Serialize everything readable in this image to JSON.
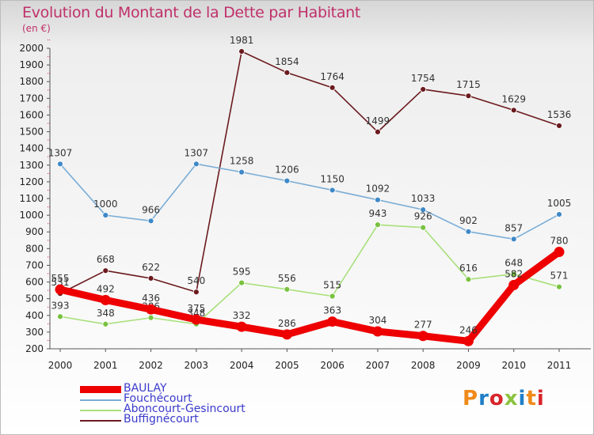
{
  "title": "Evolution du Montant de la Dette par Habitant",
  "unit": "(en €)",
  "logo": {
    "text": "Proxiti",
    "letter_colors": [
      "#f08a1a",
      "#1f7fc8",
      "#d8252b",
      "#8ac33f",
      "#1f7fc8",
      "#f08a1a",
      "#d8252b"
    ]
  },
  "chart_data": {
    "type": "line",
    "title": "Evolution du Montant de la Dette par Habitant",
    "ylabel": "(en €)",
    "x": [
      "2000",
      "2001",
      "2002",
      "2003",
      "2004",
      "2005",
      "2006",
      "2007",
      "2008",
      "2009",
      "2010",
      "2011"
    ],
    "ylim": [
      200,
      2000
    ],
    "yticks": [
      200,
      300,
      400,
      500,
      600,
      700,
      800,
      900,
      1000,
      1100,
      1200,
      1300,
      1400,
      1500,
      1600,
      1700,
      1800,
      1900,
      2000
    ],
    "grid": false,
    "legend": "bottom-left",
    "series": [
      {
        "name": "Buffignécourt",
        "color": "#6b1a1e",
        "marker": "#6b1a1e",
        "values": [
          531,
          668,
          622,
          540,
          1981,
          1854,
          1764,
          1499,
          1754,
          1715,
          1629,
          1536
        ]
      },
      {
        "name": "Fouchécourt",
        "color": "#7aadd6",
        "marker": "#3e88c8",
        "values": [
          1307,
          1000,
          966,
          1307,
          1258,
          1206,
          1150,
          1092,
          1033,
          902,
          857,
          1005
        ]
      },
      {
        "name": "Aboncourt-Gesincourt",
        "color": "#a8e07a",
        "marker": "#79c240",
        "values": [
          393,
          348,
          386,
          348,
          595,
          556,
          515,
          943,
          926,
          616,
          648,
          571
        ]
      },
      {
        "name": "BAULAY",
        "color": "#ee0000",
        "marker": "#ee0000",
        "values": [
          555,
          492,
          436,
          375,
          332,
          286,
          363,
          304,
          277,
          246,
          582,
          780
        ]
      }
    ],
    "legend_order": [
      "BAULAY",
      "Fouchécourt",
      "Aboncourt-Gesincourt",
      "Buffignécourt"
    ]
  }
}
